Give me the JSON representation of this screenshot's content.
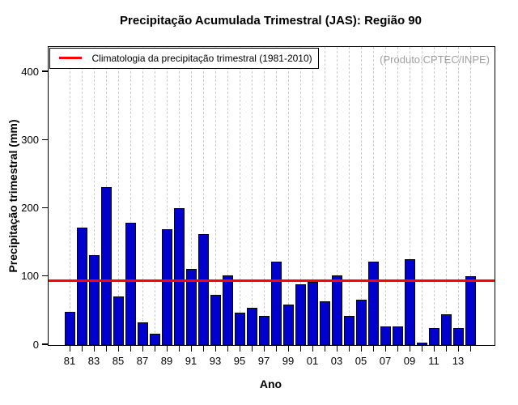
{
  "title": "Precipitação Acumulada Trimestral (JAS): Região 90",
  "watermark": "(Produto:CPTEC/INPE)",
  "legend": {
    "label": "Climatologia da precipitação trimestral (1981-2010)",
    "line_color": "#FF0000"
  },
  "chart_data": {
    "type": "bar",
    "title": "Precipitação Acumulada Trimestral (JAS): Região 90",
    "xlabel": "Ano",
    "ylabel": "Precipitação trimestral (mm)",
    "categories": [
      1981,
      1982,
      1983,
      1984,
      1985,
      1986,
      1987,
      1988,
      1989,
      1990,
      1991,
      1992,
      1993,
      1994,
      1995,
      1996,
      1997,
      1998,
      1999,
      2000,
      2001,
      2002,
      2003,
      2004,
      2005,
      2006,
      2007,
      2008,
      2009,
      2010,
      2011,
      2012,
      2013,
      2014
    ],
    "values": [
      49,
      172,
      132,
      231,
      71,
      179,
      33,
      17,
      170,
      200,
      112,
      163,
      73,
      102,
      48,
      55,
      43,
      122,
      59,
      89,
      93,
      64,
      102,
      43,
      66,
      122,
      27,
      27,
      126,
      4,
      25,
      45,
      25,
      101
    ],
    "x_tick_labels": [
      "81",
      "",
      "83",
      "",
      "85",
      "",
      "87",
      "",
      "89",
      "",
      "91",
      "",
      "93",
      "",
      "95",
      "",
      "97",
      "",
      "99",
      "",
      "01",
      "",
      "03",
      "",
      "05",
      "",
      "07",
      "",
      "09",
      "",
      "11",
      "",
      "13",
      ""
    ],
    "y_ticks": [
      0,
      100,
      200,
      300,
      400
    ],
    "ylim": [
      0,
      437
    ],
    "grid": "vertical-dashed",
    "legend_position": "top-left",
    "climatology_value": 94,
    "bar_color": "#0000CC",
    "bar_border_color": "#000000",
    "climatology_line_color": "#FF0000",
    "grid_color": "#CCCCCC"
  }
}
